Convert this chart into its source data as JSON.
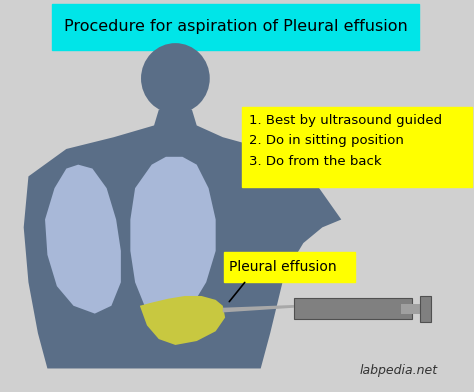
{
  "background_color": "#d0d0d0",
  "title_box_color": "#00e5e8",
  "title_text": "Procedure for aspiration of Pleural effusion",
  "title_fontsize": 11.5,
  "body_color": "#5a6e87",
  "lung_color": "#a8b8d8",
  "fluid_color": "#c8c840",
  "syringe_color": "#808080",
  "needle_color": "#909090",
  "notes_box_color": "#ffff00",
  "notes_lines": "1. Best by ultrasound guided\n2. Do in sitting position\n3. Do from the back",
  "notes_fontsize": 9.5,
  "pleural_label": "Pleural effusion",
  "pleural_label_fontsize": 10,
  "watermark": "labpedia.net",
  "watermark_fontsize": 9
}
